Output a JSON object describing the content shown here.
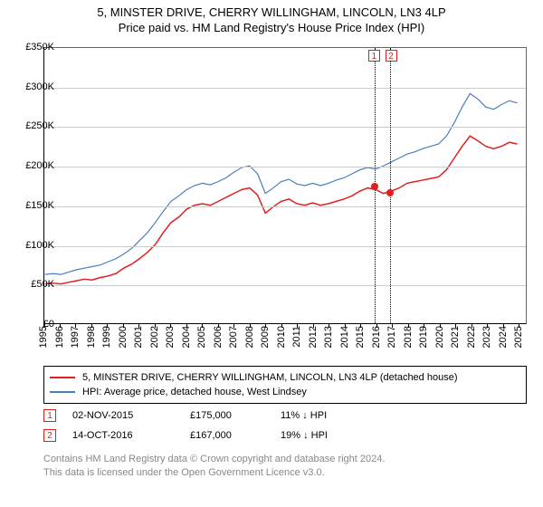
{
  "title": {
    "line1": "5, MINSTER DRIVE, CHERRY WILLINGHAM, LINCOLN, LN3 4LP",
    "line2": "Price paid vs. HM Land Registry's House Price Index (HPI)",
    "fontsize": 13
  },
  "chart": {
    "type": "line",
    "x_axis": {
      "min": 1995,
      "max": 2025.5,
      "ticks": [
        1995,
        1996,
        1997,
        1998,
        1999,
        2000,
        2001,
        2002,
        2003,
        2004,
        2005,
        2006,
        2007,
        2008,
        2009,
        2010,
        2011,
        2012,
        2013,
        2014,
        2015,
        2016,
        2017,
        2018,
        2019,
        2020,
        2021,
        2022,
        2023,
        2024,
        2025
      ],
      "label_fontsize": 11,
      "label_rotation": -90
    },
    "y_axis": {
      "min": 0,
      "max": 350000,
      "ticks": [
        0,
        50000,
        100000,
        150000,
        200000,
        250000,
        300000,
        350000
      ],
      "tick_labels": [
        "£0",
        "£50K",
        "£100K",
        "£150K",
        "£200K",
        "£250K",
        "£300K",
        "£350K"
      ],
      "label_fontsize": 11,
      "grid": true,
      "grid_color": "#cccccc"
    },
    "background_color": "#ffffff",
    "series": [
      {
        "id": "property",
        "label": "5, MINSTER DRIVE, CHERRY WILLINGHAM, LINCOLN, LN3 4LP (detached house)",
        "color": "#e02020",
        "line_width": 1.5,
        "x": [
          1995,
          1995.5,
          1996,
          1996.5,
          1997,
          1997.5,
          1998,
          1998.5,
          1999,
          1999.5,
          2000,
          2000.5,
          2001,
          2001.5,
          2002,
          2002.5,
          2003,
          2003.5,
          2004,
          2004.5,
          2005,
          2005.5,
          2006,
          2006.5,
          2007,
          2007.5,
          2008,
          2008.5,
          2009,
          2009.5,
          2010,
          2010.5,
          2011,
          2011.5,
          2012,
          2012.5,
          2013,
          2013.5,
          2014,
          2014.5,
          2015,
          2015.5,
          2016,
          2016.5,
          2017,
          2017.5,
          2018,
          2018.5,
          2019,
          2019.5,
          2020,
          2020.5,
          2021,
          2021.5,
          2022,
          2022.5,
          2023,
          2023.5,
          2024,
          2024.5,
          2025
        ],
        "y": [
          50000,
          51000,
          50000,
          52000,
          54000,
          56000,
          55000,
          58000,
          60000,
          63000,
          70000,
          75000,
          82000,
          90000,
          100000,
          115000,
          128000,
          135000,
          145000,
          150000,
          152000,
          150000,
          155000,
          160000,
          165000,
          170000,
          172000,
          163000,
          140000,
          148000,
          155000,
          158000,
          152000,
          150000,
          153000,
          150000,
          152000,
          155000,
          158000,
          162000,
          168000,
          172000,
          170000,
          165000,
          168000,
          172000,
          178000,
          180000,
          182000,
          184000,
          186000,
          195000,
          210000,
          225000,
          238000,
          232000,
          225000,
          222000,
          225000,
          230000,
          228000
        ]
      },
      {
        "id": "hpi",
        "label": "HPI: Average price, detached house, West Lindsey",
        "color": "#4a7ebb",
        "line_width": 1.2,
        "x": [
          1995,
          1995.5,
          1996,
          1996.5,
          1997,
          1997.5,
          1998,
          1998.5,
          1999,
          1999.5,
          2000,
          2000.5,
          2001,
          2001.5,
          2002,
          2002.5,
          2003,
          2003.5,
          2004,
          2004.5,
          2005,
          2005.5,
          2006,
          2006.5,
          2007,
          2007.5,
          2008,
          2008.5,
          2009,
          2009.5,
          2010,
          2010.5,
          2011,
          2011.5,
          2012,
          2012.5,
          2013,
          2013.5,
          2014,
          2014.5,
          2015,
          2015.5,
          2016,
          2016.5,
          2017,
          2017.5,
          2018,
          2018.5,
          2019,
          2019.5,
          2020,
          2020.5,
          2021,
          2021.5,
          2022,
          2022.5,
          2023,
          2023.5,
          2024,
          2024.5,
          2025
        ],
        "y": [
          62000,
          63000,
          62000,
          65000,
          68000,
          70000,
          72000,
          74000,
          78000,
          82000,
          88000,
          95000,
          105000,
          115000,
          128000,
          142000,
          155000,
          162000,
          170000,
          175000,
          178000,
          176000,
          180000,
          185000,
          192000,
          198000,
          200000,
          190000,
          165000,
          172000,
          180000,
          183000,
          177000,
          175000,
          178000,
          175000,
          178000,
          182000,
          185000,
          190000,
          195000,
          198000,
          196000,
          200000,
          205000,
          210000,
          215000,
          218000,
          222000,
          225000,
          228000,
          238000,
          255000,
          275000,
          292000,
          285000,
          275000,
          272000,
          278000,
          283000,
          280000
        ]
      }
    ],
    "sale_markers": [
      {
        "n": "1",
        "x": 2015.84,
        "price": 175000
      },
      {
        "n": "2",
        "x": 2016.79,
        "price": 167000
      }
    ]
  },
  "legend": {
    "border_color": "#000000",
    "items": [
      {
        "color": "#e02020",
        "label": "5, MINSTER DRIVE, CHERRY WILLINGHAM, LINCOLN, LN3 4LP (detached house)"
      },
      {
        "color": "#4a7ebb",
        "label": "HPI: Average price, detached house, West Lindsey"
      }
    ]
  },
  "sales_table": {
    "rows": [
      {
        "n": "1",
        "date": "02-NOV-2015",
        "price": "£175,000",
        "delta": "11% ↓ HPI"
      },
      {
        "n": "2",
        "date": "14-OCT-2016",
        "price": "£167,000",
        "delta": "19% ↓ HPI"
      }
    ]
  },
  "footer": {
    "line1": "Contains HM Land Registry data © Crown copyright and database right 2024.",
    "line2": "This data is licensed under the Open Government Licence v3.0.",
    "color": "#888888"
  }
}
